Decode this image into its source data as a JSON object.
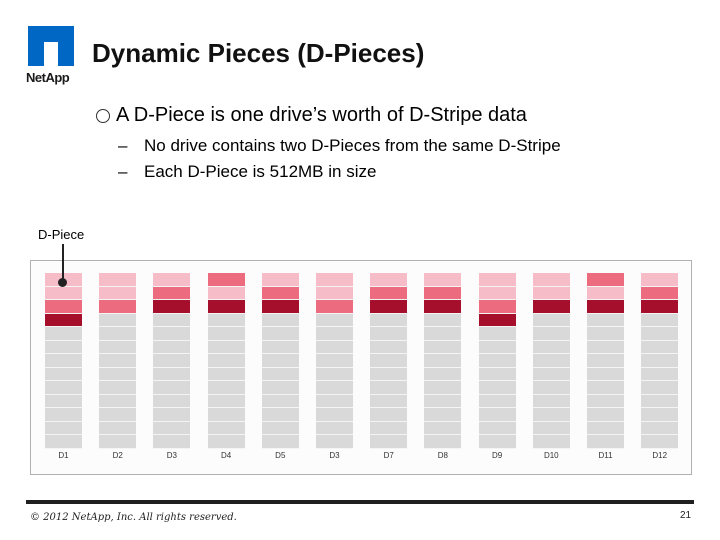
{
  "logo": {
    "name": "netapp-logo-icon",
    "text": "NetApp"
  },
  "slide": {
    "title": "Dynamic Pieces (D-Pieces)",
    "bullet": "A D-Piece is one drive’s worth of D-Stripe data",
    "sub_bullets": [
      {
        "dash": "–",
        "text": "No drive contains two D-Pieces from the same D-Stripe"
      },
      {
        "dash": "–",
        "text": "Each D-Piece is 512MB in size"
      }
    ]
  },
  "diagram": {
    "callout_label": "D-Piece",
    "colors": {
      "light": "#f6bcc7",
      "medium": "#ec6b7f",
      "dark": "#a50f2c",
      "empty": "#d9d9d9"
    },
    "cells_per_drive": 13,
    "drives": [
      {
        "label": "D1",
        "pieces": [
          "light",
          "light",
          "medium",
          "dark"
        ]
      },
      {
        "label": "D2",
        "pieces": [
          "light",
          "light",
          "medium"
        ]
      },
      {
        "label": "D3",
        "pieces": [
          "light",
          "medium",
          "dark"
        ]
      },
      {
        "label": "D4",
        "pieces": [
          "medium",
          "light",
          "dark"
        ]
      },
      {
        "label": "D5",
        "pieces": [
          "light",
          "medium",
          "dark"
        ]
      },
      {
        "label": "D3",
        "pieces": [
          "light",
          "light",
          "medium"
        ]
      },
      {
        "label": "D7",
        "pieces": [
          "light",
          "medium",
          "dark"
        ]
      },
      {
        "label": "D8",
        "pieces": [
          "light",
          "medium",
          "dark"
        ]
      },
      {
        "label": "D9",
        "pieces": [
          "light",
          "light",
          "medium",
          "dark"
        ]
      },
      {
        "label": "D10",
        "pieces": [
          "light",
          "light",
          "dark"
        ]
      },
      {
        "label": "D11",
        "pieces": [
          "medium",
          "light",
          "dark"
        ]
      },
      {
        "label": "D12",
        "pieces": [
          "light",
          "medium",
          "dark"
        ]
      }
    ]
  },
  "footer": {
    "copyright": "© 2012 NetApp, Inc. All rights reserved.",
    "page_number": "21"
  }
}
